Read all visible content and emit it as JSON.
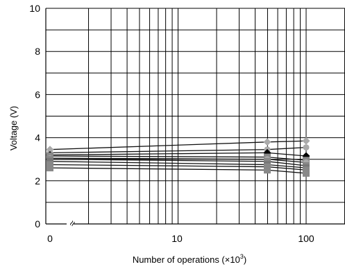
{
  "chart_data": {
    "type": "line",
    "title": "",
    "xlabel": "Number of operations (×10",
    "xlabel_sup": "3",
    "xlabel_end": ")",
    "ylabel": "Voltage  (V)",
    "x_scale": "log (with break between 0 and 1)",
    "x_ticks": [
      0,
      10,
      100
    ],
    "x_tick_labels": [
      "0",
      "10",
      "100"
    ],
    "x_break_symbol": "≈",
    "ylim": [
      0,
      10
    ],
    "y_ticks": [
      0,
      2,
      4,
      6,
      8,
      10
    ],
    "y_tick_labels": [
      "0",
      "2",
      "4",
      "6",
      "8",
      "10"
    ],
    "grid": true,
    "x": [
      0,
      50,
      100
    ],
    "series": [
      {
        "values": [
          3.45,
          3.8,
          3.85
        ],
        "marker": "diamond",
        "color": "#aaaaaa"
      },
      {
        "values": [
          3.3,
          3.45,
          3.55
        ],
        "marker": "circle",
        "color": "#aaaaaa"
      },
      {
        "values": [
          3.2,
          3.3,
          3.15
        ],
        "marker": "diamond",
        "color": "#000000"
      },
      {
        "values": [
          3.15,
          3.1,
          2.95
        ],
        "marker": "square",
        "color": "#888888"
      },
      {
        "values": [
          3.05,
          3.0,
          2.85
        ],
        "marker": "circle",
        "color": "#aaaaaa"
      },
      {
        "values": [
          3.0,
          2.9,
          2.7
        ],
        "marker": "square",
        "color": "#888888"
      },
      {
        "values": [
          2.9,
          2.75,
          2.6
        ],
        "marker": "square",
        "color": "#777777"
      },
      {
        "values": [
          2.75,
          2.65,
          2.5
        ],
        "marker": "square",
        "color": "#888888"
      },
      {
        "values": [
          2.6,
          2.5,
          2.35
        ],
        "marker": "square",
        "color": "#888888"
      }
    ]
  }
}
